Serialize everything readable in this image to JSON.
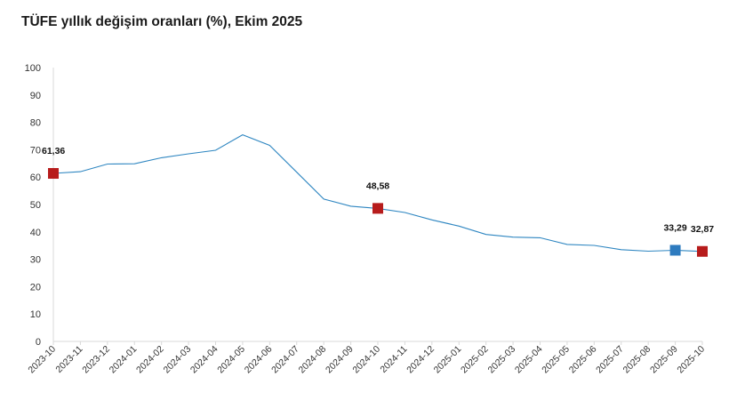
{
  "chart_data": {
    "type": "line",
    "title": "TÜFE yıllık değişim oranları (%), Ekim 2025",
    "xlabel": "",
    "ylabel": "",
    "ylim": [
      0,
      100
    ],
    "yticks": [
      0,
      10,
      20,
      30,
      40,
      50,
      60,
      70,
      80,
      90,
      100
    ],
    "grid": false,
    "legend": "none",
    "categories": [
      "2023-10",
      "2023-11",
      "2023-12",
      "2024-01",
      "2024-02",
      "2024-03",
      "2024-04",
      "2024-05",
      "2024-06",
      "2024-07",
      "2024-08",
      "2024-09",
      "2024-10",
      "2024-11",
      "2024-12",
      "2025-01",
      "2025-02",
      "2025-03",
      "2025-04",
      "2025-05",
      "2025-06",
      "2025-07",
      "2025-08",
      "2025-09",
      "2025-10"
    ],
    "series": [
      {
        "values": [
          61.36,
          61.98,
          64.77,
          64.86,
          67.07,
          68.5,
          69.8,
          75.45,
          71.6,
          61.78,
          51.97,
          49.38,
          48.58,
          47.09,
          44.38,
          42.12,
          39.05,
          38.1,
          37.86,
          35.41,
          35.05,
          33.52,
          32.95,
          33.29,
          32.87
        ],
        "color": "#2e86c1"
      }
    ],
    "annotations": [
      {
        "index": 0,
        "label": "61,36",
        "marker_color": "#b71c1c"
      },
      {
        "index": 12,
        "label": "48,58",
        "marker_color": "#b71c1c"
      },
      {
        "index": 23,
        "label": "33,29",
        "marker_color": "#2e7bbf"
      },
      {
        "index": 24,
        "label": "32,87",
        "marker_color": "#b71c1c"
      }
    ]
  }
}
